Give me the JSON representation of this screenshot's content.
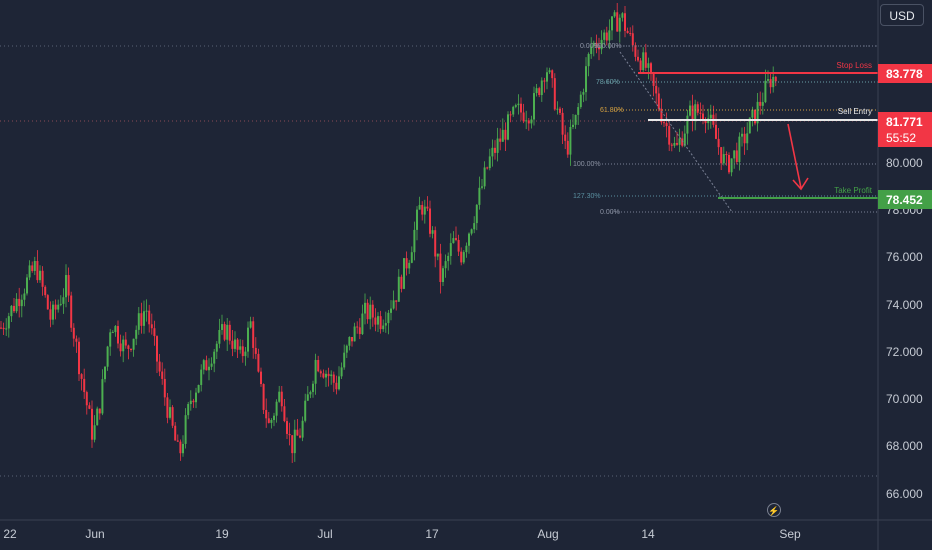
{
  "currency_button": "USD",
  "colors": {
    "background": "#1e2536",
    "up": "#4caf50",
    "down": "#f23645",
    "stop_loss": "#f23645",
    "take_profit": "#43a047",
    "sell_entry": "#ffffff",
    "last_price": "#f23645"
  },
  "chart_data": {
    "type": "candlestick",
    "x_ticks": [
      "22",
      "Jun",
      "19",
      "Jul",
      "17",
      "Aug",
      "14",
      "Sep"
    ],
    "y_ticks": [
      "66.000",
      "68.000",
      "70.000",
      "72.000",
      "74.000",
      "76.000",
      "78.000",
      "80.000"
    ],
    "ylim": [
      64.8,
      84.8
    ],
    "levels": {
      "stop_loss": {
        "label": "Stop Loss",
        "value": 83.778,
        "value_text": "83.778"
      },
      "sell_entry": {
        "label": "Sell Entry",
        "value": 81.771
      },
      "take_profit": {
        "label": "Take Profit",
        "value": 78.452,
        "value_text": "78.452"
      }
    },
    "last_price": {
      "value_text": "81.771",
      "countdown": "55:52"
    },
    "fib_labels": [
      "0.00%",
      "100.00%",
      "78.60%",
      "61.80%",
      "100.00%",
      "127.30%",
      "0.00%"
    ],
    "waypoints": [
      [
        0,
        72.2
      ],
      [
        12,
        73.0
      ],
      [
        35,
        74.6
      ],
      [
        50,
        72.5
      ],
      [
        65,
        73.8
      ],
      [
        80,
        70.4
      ],
      [
        92,
        68.0
      ],
      [
        100,
        69.5
      ],
      [
        110,
        72.5
      ],
      [
        125,
        71.3
      ],
      [
        145,
        73.0
      ],
      [
        160,
        70.2
      ],
      [
        178,
        67.2
      ],
      [
        190,
        69.5
      ],
      [
        210,
        71.2
      ],
      [
        225,
        72.2
      ],
      [
        240,
        71.0
      ],
      [
        250,
        72.4
      ],
      [
        258,
        70.0
      ],
      [
        268,
        68.4
      ],
      [
        280,
        69.8
      ],
      [
        290,
        67.6
      ],
      [
        300,
        68.2
      ],
      [
        315,
        71.0
      ],
      [
        335,
        70.0
      ],
      [
        350,
        71.8
      ],
      [
        365,
        72.8
      ],
      [
        380,
        72.5
      ],
      [
        395,
        73.5
      ],
      [
        408,
        75.0
      ],
      [
        420,
        77.0
      ],
      [
        430,
        76.0
      ],
      [
        440,
        74.0
      ],
      [
        452,
        75.5
      ],
      [
        460,
        75.0
      ],
      [
        475,
        76.8
      ],
      [
        488,
        78.6
      ],
      [
        500,
        79.5
      ],
      [
        515,
        80.5
      ],
      [
        530,
        80.5
      ],
      [
        545,
        82.3
      ],
      [
        555,
        80.8
      ],
      [
        565,
        79.0
      ],
      [
        575,
        80.2
      ],
      [
        590,
        83.0
      ],
      [
        605,
        83.5
      ],
      [
        620,
        84.2
      ],
      [
        632,
        83.0
      ],
      [
        645,
        82.2
      ],
      [
        660,
        80.5
      ],
      [
        675,
        79.0
      ],
      [
        690,
        80.5
      ],
      [
        705,
        80.5
      ],
      [
        725,
        78.4
      ],
      [
        740,
        79.2
      ],
      [
        755,
        80.5
      ],
      [
        770,
        81.8
      ]
    ]
  }
}
